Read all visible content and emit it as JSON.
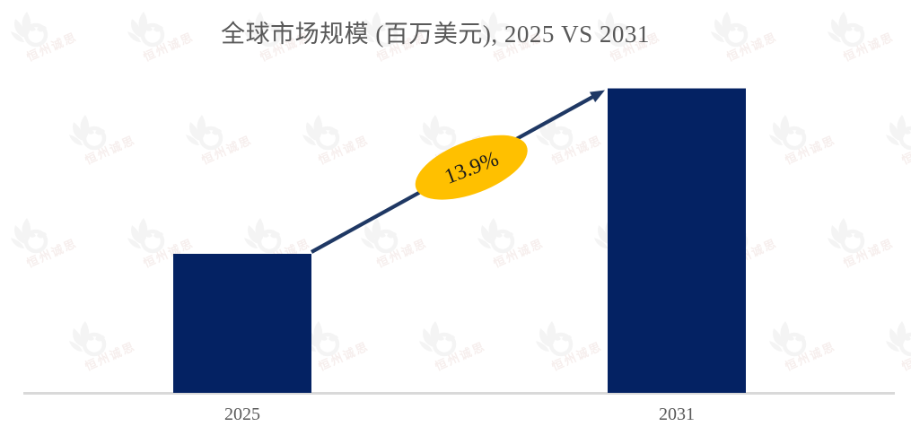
{
  "chart_data": {
    "type": "bar",
    "title": "全球市场规模 (百万美元), 2025 VS 2031",
    "categories": [
      "2025",
      "2031"
    ],
    "relative_values": [
      1.0,
      2.19
    ],
    "annotation": "13.9%",
    "xlabel": "",
    "ylabel": "",
    "legend_position": "none",
    "grid": false,
    "colors": {
      "bar": "#042263",
      "arrow": "#1f3864",
      "annotation_fill": "#ffc000",
      "annotation_text": "#1b1b1b",
      "axis": "#d9d9d9",
      "title_text": "#595959",
      "tick_text": "#595959"
    }
  },
  "watermark": {
    "text": "恒州诚思",
    "logo_icon": "flame-leaf-logo-icon"
  }
}
